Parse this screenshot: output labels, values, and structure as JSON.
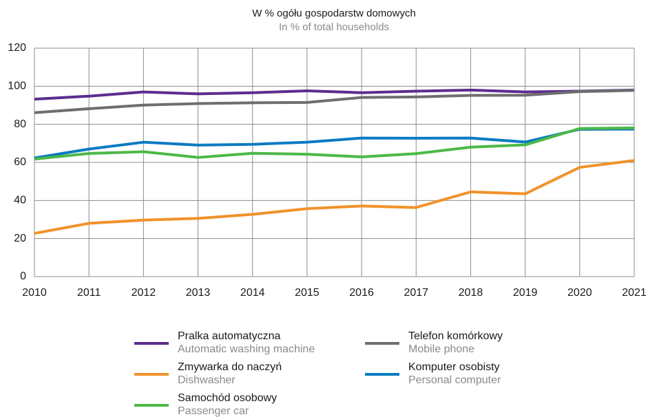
{
  "chart_data": {
    "type": "line",
    "title": "W % ogółu gospodarstw domowych",
    "subtitle": "In % of total households",
    "categories": [
      "2010",
      "2011",
      "2012",
      "2013",
      "2014",
      "2015",
      "2016",
      "2017",
      "2018",
      "2019",
      "2020",
      "2021"
    ],
    "ylim": [
      0,
      120
    ],
    "yticks": [
      0,
      20,
      40,
      60,
      80,
      100,
      120
    ],
    "grid": true,
    "series": [
      {
        "name": "Pralka automatyczna",
        "name_en": "Automatic washing machine",
        "color": "#5b2d90",
        "values": [
          93.2,
          94.8,
          97.0,
          96.0,
          96.6,
          97.6,
          96.6,
          97.4,
          98.0,
          97.0,
          97.4,
          98.0
        ]
      },
      {
        "name": "Telefon komórkowy",
        "name_en": "Mobile phone",
        "color": "#6e6e6e",
        "values": [
          86.1,
          88.2,
          90.1,
          90.9,
          91.3,
          91.5,
          94.1,
          94.4,
          95.2,
          95.3,
          97.2,
          97.8
        ]
      },
      {
        "name": "Zmywarka do naczyń",
        "name_en": "Dishwasher",
        "color": "#f0922b",
        "values": [
          22.7,
          28.0,
          29.7,
          30.6,
          32.7,
          35.7,
          37.1,
          36.3,
          44.5,
          43.5,
          57.4,
          61.0
        ]
      },
      {
        "name": "Komputer osobisty",
        "name_en": "Personal computer",
        "color": "#0a7bc2",
        "values": [
          62.3,
          67.0,
          70.6,
          69.1,
          69.5,
          70.6,
          72.8,
          72.7,
          72.8,
          70.7,
          77.4,
          77.5
        ]
      },
      {
        "name": "Samochód osobowy",
        "name_en": "Passenger car",
        "color": "#4db848",
        "values": [
          61.7,
          64.7,
          65.6,
          62.6,
          64.8,
          64.3,
          62.9,
          64.6,
          68.0,
          69.2,
          77.8,
          78.1
        ]
      }
    ]
  }
}
